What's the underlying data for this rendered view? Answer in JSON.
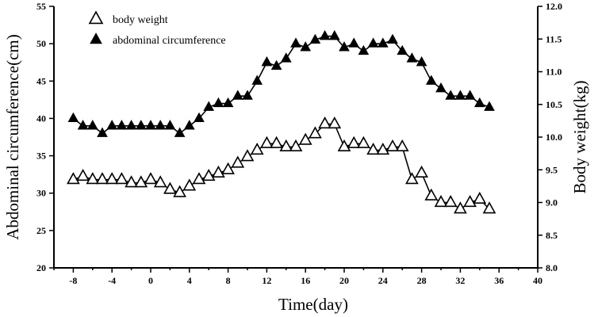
{
  "chart_data": {
    "type": "line",
    "title": "",
    "xlabel": "Time(day)",
    "ylabel_left": "Abdominal circumference(cm)",
    "ylabel_right": "Body weight(kg)",
    "xlim": [
      -10,
      40
    ],
    "ylim_left": [
      20,
      55
    ],
    "ylim_right": [
      8.0,
      12.0
    ],
    "x_ticks": [
      -8,
      -4,
      0,
      4,
      8,
      12,
      16,
      20,
      24,
      28,
      32,
      36,
      40
    ],
    "x_tick_labels": [
      "-8",
      "-4",
      "0",
      "4",
      "8",
      "12",
      "16",
      "20",
      "24",
      "28",
      "32",
      "36",
      "40"
    ],
    "y_left_ticks": [
      20,
      25,
      30,
      35,
      40,
      45,
      50,
      55
    ],
    "y_left_tick_labels": [
      "20",
      "25",
      "30",
      "35",
      "40",
      "45",
      "50",
      "55"
    ],
    "y_right_ticks": [
      8.0,
      8.5,
      9.0,
      9.5,
      10.0,
      10.5,
      11.0,
      11.5,
      12.0
    ],
    "y_right_tick_labels": [
      "8.0",
      "8.5",
      "9.0",
      "9.5",
      "10.0",
      "10.5",
      "11.0",
      "11.5",
      "12.0"
    ],
    "legend": {
      "position": "top-left"
    },
    "series": [
      {
        "name": "body weight",
        "axis": "right",
        "marker": "open-triangle",
        "x": [
          -8,
          -7,
          -6,
          -5,
          -4,
          -3,
          -2,
          -1,
          0,
          1,
          2,
          3,
          4,
          5,
          6,
          7,
          8,
          9,
          10,
          11,
          12,
          13,
          14,
          15,
          16,
          17,
          18,
          19,
          20,
          21,
          22,
          23,
          24,
          25,
          26,
          27,
          28,
          29,
          30,
          31,
          32,
          33,
          34,
          35
        ],
        "values": [
          9.35,
          9.4,
          9.35,
          9.35,
          9.35,
          9.35,
          9.3,
          9.3,
          9.35,
          9.3,
          9.2,
          9.15,
          9.25,
          9.35,
          9.4,
          9.45,
          9.5,
          9.6,
          9.7,
          9.8,
          9.9,
          9.9,
          9.85,
          9.85,
          9.95,
          10.05,
          10.2,
          10.2,
          9.85,
          9.9,
          9.9,
          9.8,
          9.8,
          9.85,
          9.85,
          9.35,
          9.45,
          9.1,
          9.0,
          9.0,
          8.9,
          9.0,
          9.05,
          8.9
        ]
      },
      {
        "name": "abdominal circumference",
        "axis": "left",
        "marker": "filled-triangle",
        "x": [
          -8,
          -7,
          -6,
          -5,
          -4,
          -3,
          -2,
          -1,
          0,
          1,
          2,
          3,
          4,
          5,
          6,
          7,
          8,
          9,
          10,
          11,
          12,
          13,
          14,
          15,
          16,
          17,
          18,
          19,
          20,
          21,
          22,
          23,
          24,
          25,
          26,
          27,
          28,
          29,
          30,
          31,
          32,
          33,
          34,
          35
        ],
        "values": [
          40,
          39,
          39,
          38,
          39,
          39,
          39,
          39,
          39,
          39,
          39,
          38,
          39,
          40,
          41.5,
          42,
          42,
          43,
          43,
          45,
          47.5,
          47,
          48,
          50,
          49.5,
          50.5,
          51,
          51,
          49.5,
          50,
          49,
          50,
          50,
          50.5,
          49,
          48,
          47.5,
          45,
          44,
          43,
          43,
          43,
          42,
          41.5
        ]
      }
    ]
  }
}
